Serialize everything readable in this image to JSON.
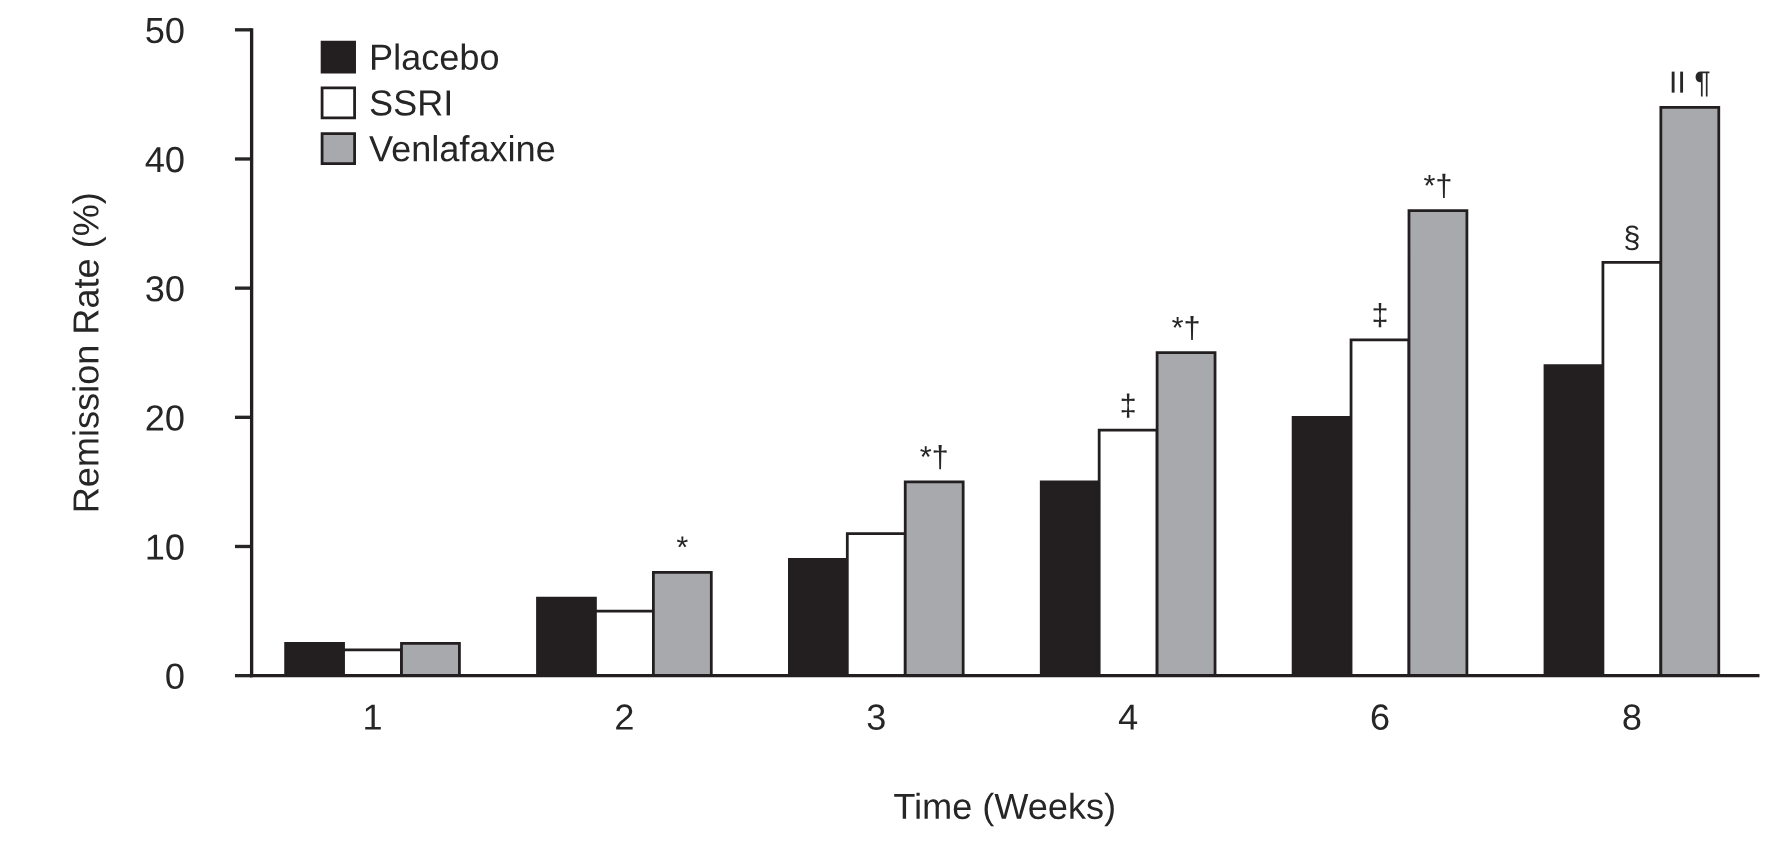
{
  "chart_data": {
    "type": "bar",
    "xlabel": "Time (Weeks)",
    "ylabel": "Remission Rate (%)",
    "categories": [
      "1",
      "2",
      "3",
      "4",
      "6",
      "8"
    ],
    "series": [
      {
        "name": "Placebo",
        "color": "#231f20",
        "values": [
          2.5,
          6,
          9,
          15,
          20,
          24
        ]
      },
      {
        "name": "SSRI",
        "color": "#ffffff",
        "values": [
          2,
          5,
          11,
          19,
          26,
          32
        ],
        "value_labels": [
          null,
          null,
          null,
          "‡",
          "‡",
          "§"
        ]
      },
      {
        "name": "Venlafaxine",
        "color": "#a7a9ac",
        "values": [
          2.5,
          8,
          15,
          25,
          36,
          44
        ],
        "value_labels": [
          null,
          "*",
          "*†",
          "*†",
          "*†",
          "II ¶"
        ]
      }
    ],
    "ylim": [
      0,
      50
    ],
    "yticks": [
      0,
      10,
      20,
      30,
      40,
      50
    ],
    "grid": false,
    "legend": "top left"
  }
}
